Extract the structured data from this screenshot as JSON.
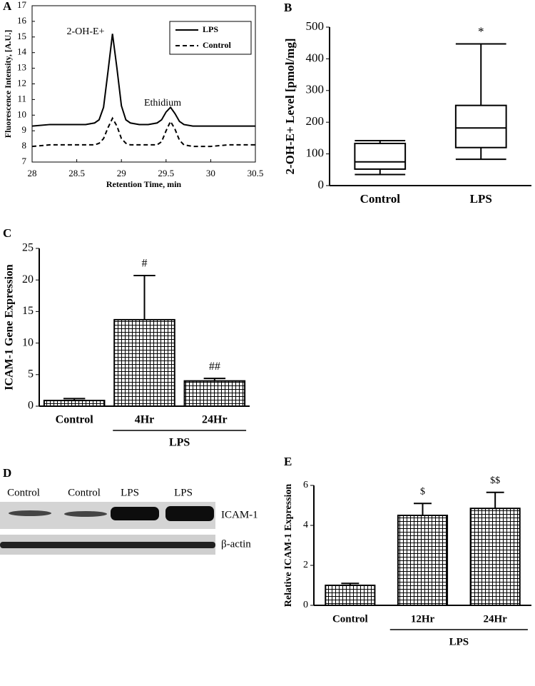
{
  "chart_data": [
    {
      "type": "line",
      "label": "A",
      "xlabel": "Retention Time, min",
      "ylabel": "Fluorescence Intensity, [A.U.]",
      "x": [
        28,
        28.2,
        28.4,
        28.6,
        28.7,
        28.75,
        28.8,
        28.85,
        28.9,
        28.95,
        29,
        29.05,
        29.1,
        29.2,
        29.3,
        29.4,
        29.45,
        29.5,
        29.55,
        29.6,
        29.65,
        29.7,
        29.8,
        30,
        30.2,
        30.5
      ],
      "series": [
        {
          "name": "LPS",
          "color": "#000000",
          "linestyle": "solid",
          "values": [
            9.3,
            9.4,
            9.4,
            9.4,
            9.5,
            9.7,
            10.5,
            12.8,
            15.2,
            13,
            10.6,
            9.7,
            9.5,
            9.4,
            9.4,
            9.5,
            9.7,
            10.2,
            10.5,
            10.1,
            9.6,
            9.4,
            9.3,
            9.3,
            9.3,
            9.3
          ]
        },
        {
          "name": "Control",
          "color": "#000000",
          "linestyle": "dashed",
          "values": [
            8.0,
            8.1,
            8.1,
            8.1,
            8.1,
            8.2,
            8.5,
            9.2,
            9.8,
            9.3,
            8.5,
            8.2,
            8.1,
            8.1,
            8.1,
            8.1,
            8.3,
            9.0,
            9.6,
            9.1,
            8.4,
            8.1,
            8.0,
            8.0,
            8.1,
            8.1
          ]
        }
      ],
      "annotations": [
        "2-OH-E+",
        "Ethidium"
      ],
      "xlim": [
        28,
        30.5
      ],
      "xticks": [
        28,
        28.5,
        29,
        29.5,
        30,
        30.5
      ],
      "ylim": [
        7,
        17
      ],
      "yticks": [
        7,
        8,
        9,
        10,
        11,
        12,
        13,
        14,
        15,
        16,
        17
      ],
      "legend": "upper right"
    },
    {
      "type": "box",
      "label": "B",
      "ylabel": "2-OH-E+ Level [pmol/mg]",
      "categories": [
        "Control",
        "LPS"
      ],
      "stats": [
        {
          "min": 35,
          "q1": 52,
          "median": 75,
          "q3": 133,
          "max": 142
        },
        {
          "min": 83,
          "q1": 120,
          "median": 182,
          "q3": 253,
          "max": 447
        }
      ],
      "significance": [
        null,
        "*"
      ],
      "ylim": [
        0,
        500
      ],
      "yticks": [
        0,
        100,
        200,
        300,
        400,
        500
      ]
    },
    {
      "type": "bar",
      "label": "C",
      "ylabel": "ICAM-1 Gene Expression",
      "categories": [
        "Control",
        "4Hr",
        "24Hr"
      ],
      "values": [
        0.9,
        13.7,
        4.0
      ],
      "errors": [
        0.3,
        7.0,
        0.4
      ],
      "significance": [
        null,
        "#",
        "##"
      ],
      "groups": [
        {
          "label": "LPS",
          "members": [
            "4Hr",
            "24Hr"
          ]
        }
      ],
      "ylim": [
        0,
        25
      ],
      "yticks": [
        0,
        5,
        10,
        15,
        20,
        25
      ]
    },
    {
      "type": "bar",
      "label": "E",
      "ylabel": "Relative ICAM-1 Expression",
      "categories": [
        "Control",
        "12Hr",
        "24Hr"
      ],
      "values": [
        1.0,
        4.5,
        4.85
      ],
      "errors": [
        0.1,
        0.6,
        0.8
      ],
      "significance": [
        null,
        "$",
        "$$"
      ],
      "groups": [
        {
          "label": "LPS",
          "members": [
            "12Hr",
            "24Hr"
          ]
        }
      ],
      "ylim": [
        0,
        6
      ],
      "yticks": [
        0,
        2,
        4,
        6
      ]
    }
  ],
  "blot": {
    "label": "D",
    "lanes": [
      "Control",
      "Control",
      "LPS",
      "LPS"
    ],
    "bands": [
      "ICAM-1",
      "β-actin"
    ]
  }
}
